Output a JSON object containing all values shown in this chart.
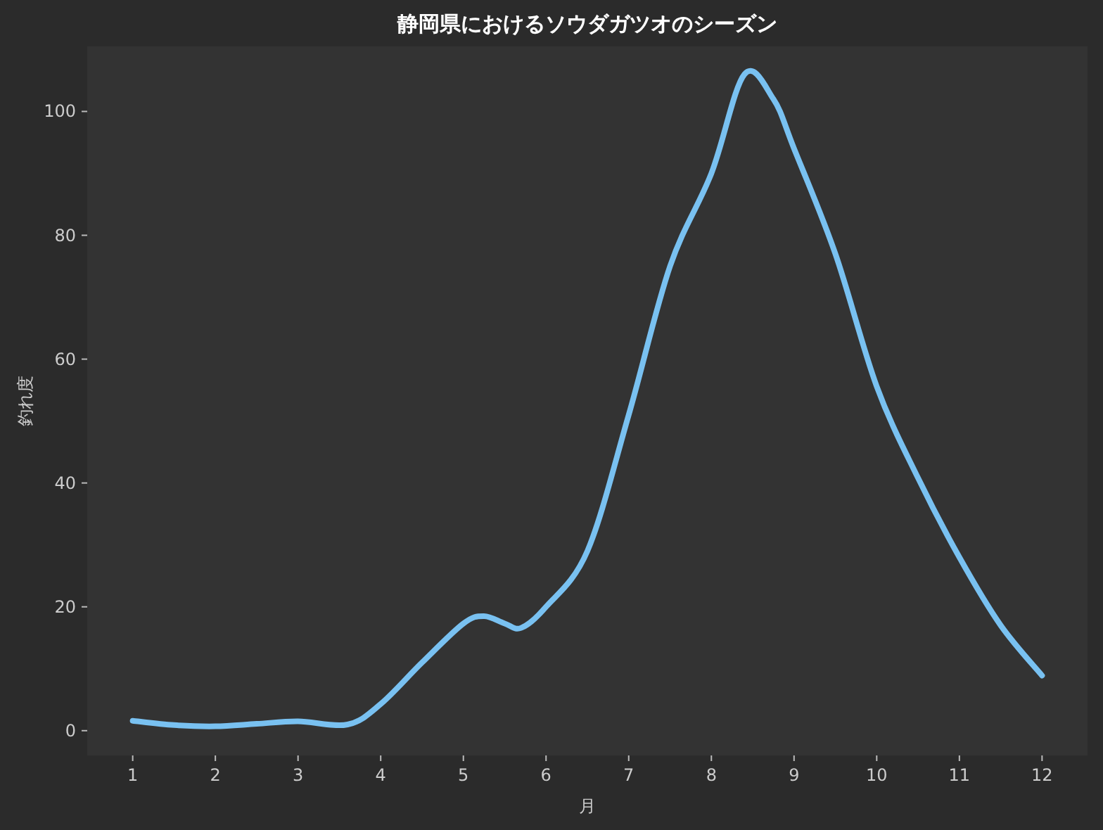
{
  "chart_data": {
    "type": "line",
    "title": "静岡県におけるソウダガツオのシーズン",
    "xlabel": "月",
    "ylabel": "釣れ度",
    "x": [
      1,
      1.5,
      2,
      2.5,
      3,
      3.6,
      4,
      4.5,
      5,
      5.25,
      5.5,
      5.7,
      6,
      6.5,
      7,
      7.5,
      8,
      8.4,
      8.75,
      9,
      9.5,
      10,
      10.5,
      11,
      11.5,
      12
    ],
    "series": [
      {
        "color": "#79c1f1",
        "values": [
          1.6,
          0.9,
          0.7,
          1.1,
          1.5,
          1.0,
          4.3,
          11,
          17.3,
          18.5,
          17.3,
          16.6,
          20,
          29,
          51,
          75,
          90,
          106,
          102,
          94,
          77,
          55.6,
          40.8,
          28,
          17,
          8.9
        ]
      }
    ],
    "xlim": [
      0.45,
      12.55
    ],
    "ylim": [
      -4,
      110.5
    ],
    "xticks": [
      1,
      2,
      3,
      4,
      5,
      6,
      7,
      8,
      9,
      10,
      11,
      12
    ],
    "yticks": [
      0,
      20,
      40,
      60,
      80,
      100
    ],
    "grid": false,
    "marker": "none",
    "line_style": "solid"
  }
}
